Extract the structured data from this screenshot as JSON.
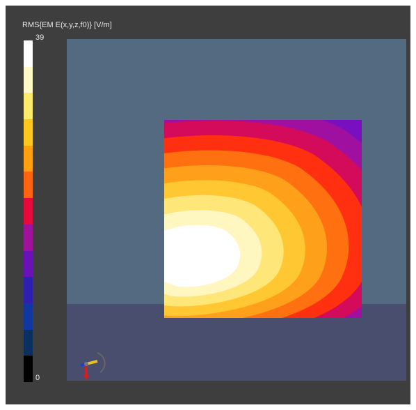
{
  "colorbar": {
    "title": "RMS{EM E(x,y,z,f0)} [V/m]",
    "max_label": "39",
    "min_label": "0",
    "colors": [
      "#ffffff",
      "#fffac8",
      "#ffeb6b",
      "#ffc81e",
      "#ffa010",
      "#ff6410",
      "#e60a3c",
      "#a0109a",
      "#6a12b8",
      "#3020b0",
      "#1038a0",
      "#0a3060",
      "#000000"
    ]
  },
  "scene": {
    "background_color": "#536a80",
    "floor_color": "#4a4e6e"
  },
  "field_plane": {
    "contour_colors": [
      "#4a1cc6",
      "#7810c0",
      "#a010a0",
      "#d40a5a",
      "#ff3010",
      "#ff7010",
      "#ffa01a",
      "#ffc832",
      "#ffe678",
      "#fff6c0",
      "#ffffff"
    ],
    "corner_color": "#1050a0"
  },
  "axis_triad": {
    "icon": "axis-triad-icon"
  }
}
